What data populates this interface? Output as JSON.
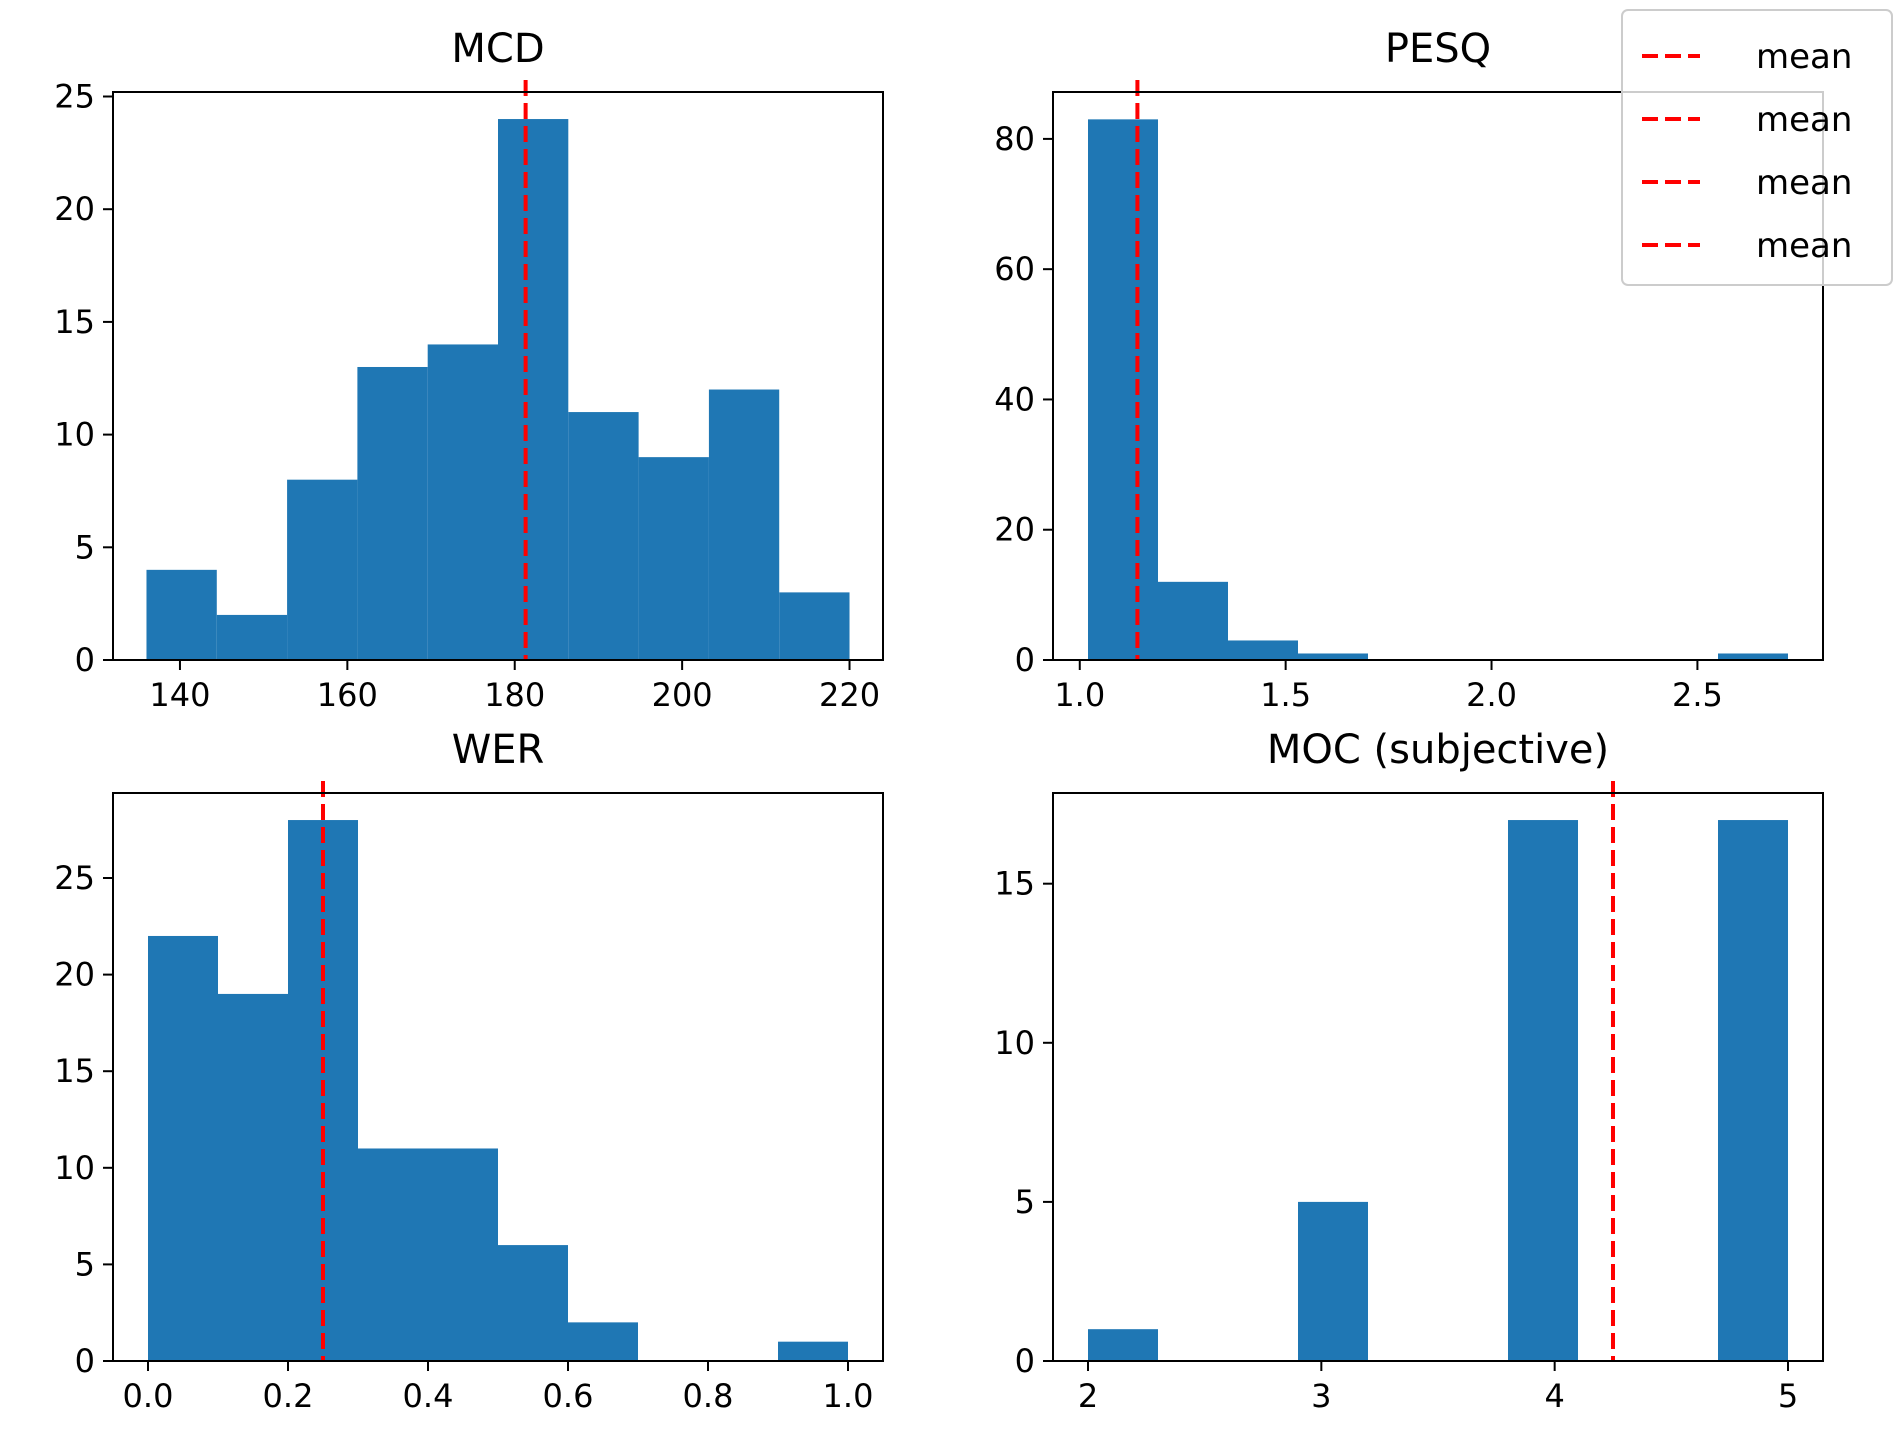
{
  "chart_data": [
    {
      "type": "bar",
      "title": "MCD",
      "xlabel": "",
      "ylabel": "",
      "bin_edges": [
        136.0,
        144.4,
        152.8,
        161.2,
        169.6,
        178.0,
        186.4,
        194.8,
        203.2,
        211.6,
        220.0
      ],
      "values": [
        4,
        2,
        8,
        13,
        14,
        24,
        11,
        9,
        12,
        3
      ],
      "mean": 181.3,
      "xlim": [
        132,
        224
      ],
      "ylim": [
        0,
        25.2
      ],
      "xticks": [
        140,
        160,
        180,
        200,
        220
      ],
      "xtick_labels": [
        "140",
        "160",
        "180",
        "200",
        "220"
      ],
      "yticks": [
        0,
        5,
        10,
        15,
        20,
        25
      ],
      "ytick_labels": [
        "0",
        "5",
        "10",
        "15",
        "20",
        "25"
      ]
    },
    {
      "type": "bar",
      "title": "PESQ",
      "xlabel": "",
      "ylabel": "",
      "bin_edges": [
        1.02,
        1.19,
        1.36,
        1.53,
        1.7,
        1.87,
        2.04,
        2.21,
        2.38,
        2.55,
        2.72
      ],
      "values": [
        83,
        12,
        3,
        1,
        0,
        0,
        0,
        0,
        0,
        1
      ],
      "mean": 1.14,
      "xlim": [
        0.935,
        2.805
      ],
      "ylim": [
        0,
        87.2
      ],
      "xticks": [
        1.0,
        1.5,
        2.0,
        2.5
      ],
      "xtick_labels": [
        "1.0",
        "1.5",
        "2.0",
        "2.5"
      ],
      "yticks": [
        0,
        20,
        40,
        60,
        80
      ],
      "ytick_labels": [
        "0",
        "20",
        "40",
        "60",
        "80"
      ]
    },
    {
      "type": "bar",
      "title": "WER",
      "xlabel": "",
      "ylabel": "",
      "bin_edges": [
        0.0,
        0.1,
        0.2,
        0.3,
        0.4,
        0.5,
        0.6,
        0.7,
        0.8,
        0.9,
        1.0
      ],
      "values": [
        22,
        19,
        28,
        11,
        11,
        6,
        2,
        0,
        0,
        1
      ],
      "mean": 0.25,
      "xlim": [
        -0.05,
        1.05
      ],
      "ylim": [
        0,
        29.4
      ],
      "xticks": [
        0.0,
        0.2,
        0.4,
        0.6,
        0.8,
        1.0
      ],
      "xtick_labels": [
        "0.0",
        "0.2",
        "0.4",
        "0.6",
        "0.8",
        "1.0"
      ],
      "yticks": [
        0,
        5,
        10,
        15,
        20,
        25
      ],
      "ytick_labels": [
        "0",
        "5",
        "10",
        "15",
        "20",
        "25"
      ]
    },
    {
      "type": "bar",
      "title": "MOC (subjective)",
      "xlabel": "",
      "ylabel": "",
      "bin_edges": [
        2.0,
        2.3,
        2.6,
        2.9,
        3.2,
        3.5,
        3.8,
        4.1,
        4.4,
        4.7,
        5.0
      ],
      "values": [
        1,
        0,
        0,
        5,
        0,
        0,
        17,
        0,
        0,
        17
      ],
      "mean": 4.25,
      "xlim": [
        1.85,
        5.15
      ],
      "ylim": [
        0,
        17.85
      ],
      "xticks": [
        2,
        3,
        4,
        5
      ],
      "xtick_labels": [
        "2",
        "3",
        "4",
        "5"
      ],
      "yticks": [
        0,
        5,
        10,
        15
      ],
      "ytick_labels": [
        "0",
        "5",
        "10",
        "15"
      ]
    }
  ],
  "legend": {
    "position": "top-right",
    "entries": [
      "mean",
      "mean",
      "mean",
      "mean"
    ]
  },
  "colors": {
    "bar": "#1f77b4",
    "mean_line": "#ff0000",
    "axes": "#000000",
    "legend_border": "#cccccc"
  }
}
